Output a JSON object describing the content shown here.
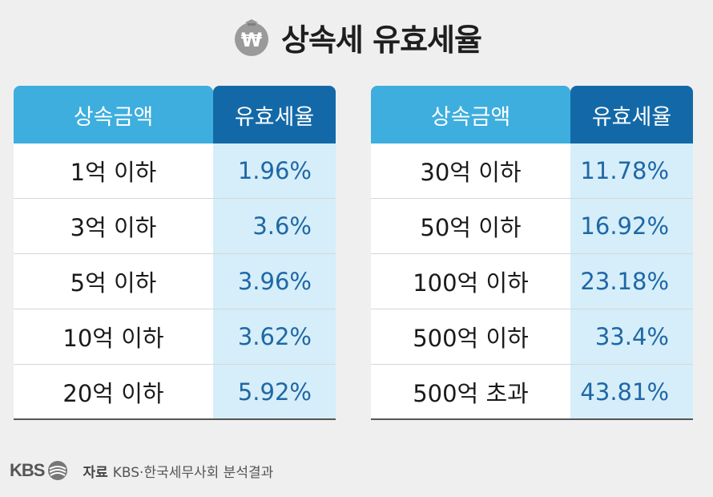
{
  "title": {
    "icon": "won-money-bag-icon",
    "icon_glyph": "₩",
    "text": "상속세 유효세율"
  },
  "headers": {
    "amount": "상속금액",
    "rate": "유효세율"
  },
  "left_table": [
    {
      "amount": "1억 이하",
      "rate": "1.96%"
    },
    {
      "amount": "3억 이하",
      "rate": "3.6%"
    },
    {
      "amount": "5억 이하",
      "rate": "3.96%"
    },
    {
      "amount": "10억 이하",
      "rate": "3.62%"
    },
    {
      "amount": "20억 이하",
      "rate": "5.92%"
    }
  ],
  "right_table": [
    {
      "amount": "30억 이하",
      "rate": "11.78%"
    },
    {
      "amount": "50억 이하",
      "rate": "16.92%"
    },
    {
      "amount": "100억 이하",
      "rate": "23.18%"
    },
    {
      "amount": "500억 이하",
      "rate": "33.4%"
    },
    {
      "amount": "500억 초과",
      "rate": "43.81%"
    }
  ],
  "footer": {
    "logo": "KBS",
    "source_label": "자료",
    "source_text": "KBS·한국세무사회 분석결과"
  },
  "colors": {
    "header_amount": "#3daede",
    "header_rate": "#1369a8",
    "rate_cell_bg": "#d5eef9",
    "rate_text": "#1f67a6"
  }
}
